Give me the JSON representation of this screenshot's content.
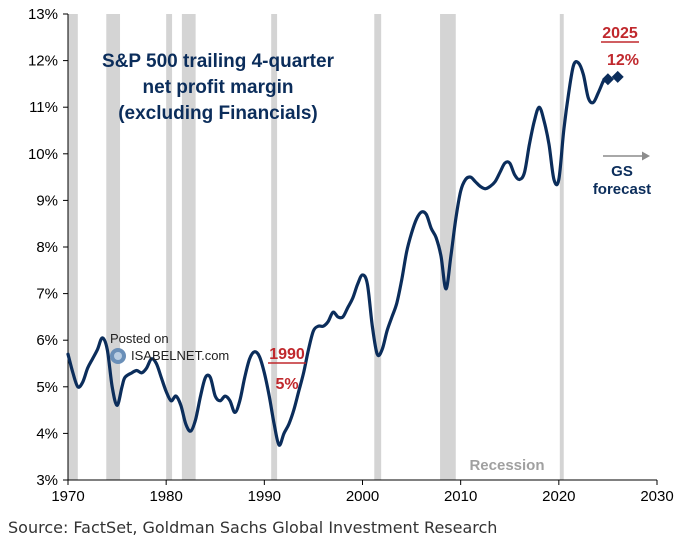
{
  "colors": {
    "line": "#0b2d5b",
    "recession": "#d4d4d4",
    "accent_red": "#c0282d",
    "navy": "#0b2d5b",
    "axis": "#000000",
    "arrow": "#8c8c8c"
  },
  "source": "Source: FactSet, Goldman Sachs Global Investment Research",
  "watermark": {
    "line1": "Posted on",
    "line2": "ISABELNET.com"
  },
  "chart_data": {
    "type": "line",
    "title": [
      "S&P 500 trailing 4-quarter",
      "net profit margin",
      "(excluding Financials)"
    ],
    "xlabel": "",
    "ylabel": "",
    "xlim": [
      1970,
      2030
    ],
    "ylim": [
      3,
      13
    ],
    "x_ticks": [
      1970,
      1980,
      1990,
      2000,
      2010,
      2020,
      2030
    ],
    "x_tick_labels": [
      "1970",
      "1980",
      "1990",
      "2000",
      "2010",
      "2020",
      "2030"
    ],
    "y_ticks": [
      3,
      4,
      5,
      6,
      7,
      8,
      9,
      10,
      11,
      12,
      13
    ],
    "y_tick_labels": [
      "3%",
      "4%",
      "5%",
      "6%",
      "7%",
      "8%",
      "9%",
      "10%",
      "11%",
      "12%",
      "13%"
    ],
    "recessions": [
      [
        1970.0,
        1971.0
      ],
      [
        1973.9,
        1975.3
      ],
      [
        1980.0,
        1980.6
      ],
      [
        1981.6,
        1983.0
      ],
      [
        1990.7,
        1991.3
      ],
      [
        2001.2,
        2001.9
      ],
      [
        2007.9,
        2009.5
      ],
      [
        2020.1,
        2020.5
      ]
    ],
    "recession_label": "Recession",
    "series": [
      {
        "name": "S&P 500 trailing 4-quarter net profit margin (ex-Financials)",
        "x": [
          1970.0,
          1970.5,
          1971.0,
          1971.5,
          1972.0,
          1972.5,
          1973.0,
          1973.5,
          1974.0,
          1974.5,
          1975.0,
          1975.5,
          1975.8,
          1976.5,
          1977.0,
          1977.5,
          1978.0,
          1978.5,
          1979.0,
          1979.5,
          1980.0,
          1980.5,
          1981.0,
          1981.5,
          1982.0,
          1982.5,
          1983.0,
          1983.5,
          1984.0,
          1984.5,
          1985.0,
          1985.5,
          1986.0,
          1986.5,
          1987.0,
          1987.5,
          1988.0,
          1988.5,
          1989.0,
          1989.5,
          1990.0,
          1990.5,
          1991.0,
          1991.5,
          1992.0,
          1992.5,
          1993.0,
          1993.5,
          1994.0,
          1994.5,
          1995.0,
          1995.5,
          1996.0,
          1996.5,
          1997.0,
          1997.5,
          1998.0,
          1998.5,
          1999.0,
          1999.5,
          2000.0,
          2000.5,
          2001.0,
          2001.5,
          2002.0,
          2002.5,
          2003.0,
          2003.5,
          2004.0,
          2004.5,
          2005.0,
          2005.5,
          2006.0,
          2006.5,
          2007.0,
          2007.5,
          2008.0,
          2008.5,
          2009.0,
          2009.5,
          2010.0,
          2010.5,
          2011.0,
          2011.5,
          2012.0,
          2012.5,
          2013.0,
          2013.5,
          2014.0,
          2014.5,
          2015.0,
          2015.5,
          2016.0,
          2016.5,
          2017.0,
          2017.5,
          2018.0,
          2018.5,
          2019.0,
          2019.5,
          2020.0,
          2020.5,
          2021.0,
          2021.5,
          2022.0,
          2022.5,
          2023.0,
          2023.5,
          2024.0,
          2024.5
        ],
        "y": [
          5.7,
          5.3,
          5.0,
          5.1,
          5.4,
          5.6,
          5.8,
          6.05,
          5.8,
          5.0,
          4.6,
          5.0,
          5.2,
          5.3,
          5.35,
          5.3,
          5.4,
          5.6,
          5.5,
          5.2,
          4.9,
          4.7,
          4.8,
          4.6,
          4.2,
          4.05,
          4.3,
          4.8,
          5.2,
          5.2,
          4.8,
          4.7,
          4.8,
          4.7,
          4.45,
          4.7,
          5.2,
          5.6,
          5.75,
          5.65,
          5.3,
          4.8,
          4.2,
          3.75,
          4.0,
          4.2,
          4.5,
          4.9,
          5.3,
          5.8,
          6.2,
          6.3,
          6.3,
          6.4,
          6.6,
          6.5,
          6.5,
          6.7,
          6.9,
          7.2,
          7.4,
          7.2,
          6.3,
          5.7,
          5.8,
          6.2,
          6.5,
          6.8,
          7.3,
          7.9,
          8.3,
          8.6,
          8.75,
          8.7,
          8.4,
          8.2,
          7.8,
          7.1,
          7.8,
          8.6,
          9.2,
          9.45,
          9.5,
          9.4,
          9.3,
          9.25,
          9.3,
          9.4,
          9.6,
          9.8,
          9.8,
          9.55,
          9.45,
          9.6,
          10.2,
          10.7,
          11.0,
          10.7,
          10.2,
          9.45,
          9.45,
          10.5,
          11.3,
          11.9,
          11.95,
          11.7,
          11.2,
          11.1,
          11.3,
          11.55
        ]
      },
      {
        "name": "GS forecast",
        "x": [
          2025.0,
          2026.0
        ],
        "y": [
          11.6,
          11.65
        ]
      }
    ],
    "annotations": [
      {
        "id": "ann1990-year",
        "text": "1990",
        "color": "red",
        "underline": true
      },
      {
        "id": "ann1990-value",
        "text": "5%",
        "color": "red"
      },
      {
        "id": "ann2025-year",
        "text": "2025",
        "color": "red",
        "underline": true
      },
      {
        "id": "ann2025-value",
        "text": "12%",
        "color": "red"
      },
      {
        "id": "gs-forecast-line1",
        "text": "GS",
        "color": "navy"
      },
      {
        "id": "gs-forecast-line2",
        "text": "forecast",
        "color": "navy"
      }
    ]
  }
}
